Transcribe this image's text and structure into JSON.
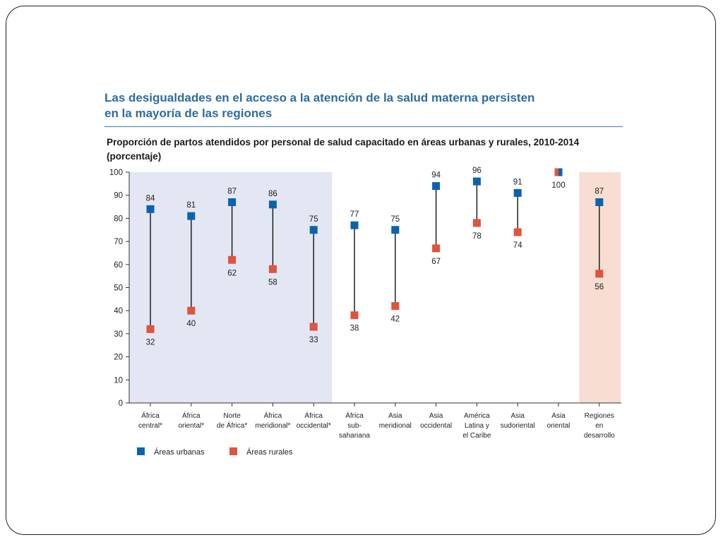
{
  "title": "Las desigualdades en el acceso a la atención de la salud materna persisten\nen la mayoría de las regiones",
  "subtitle": "Proporción de partos atendidos por personal de salud capacitado en áreas urbanas y rurales, 2010-2014\n(porcentaje)",
  "colors": {
    "urban": "#0b63ad",
    "rural": "#e0533c",
    "shade_left": "#e3e6f3",
    "shade_right": "#f7ddd2"
  },
  "chart_data": {
    "type": "scatter",
    "title": "Proporción de partos atendidos por personal de salud capacitado en áreas urbanas y rurales, 2010-2014 (porcentaje)",
    "ylim": [
      0,
      100
    ],
    "yticks": [
      0,
      10,
      20,
      30,
      40,
      50,
      60,
      70,
      80,
      90,
      100
    ],
    "grid": false,
    "legend_placement": "bottom-left",
    "categories": [
      [
        "África",
        "central*"
      ],
      [
        "África",
        "oriental*"
      ],
      [
        "Norte",
        "de África*"
      ],
      [
        "África",
        "meridional*"
      ],
      [
        "África",
        "occidental*"
      ],
      [
        "África",
        "sub-",
        "sahariana"
      ],
      [
        "Asia",
        "meridional"
      ],
      [
        "Asia",
        "occidental"
      ],
      [
        "América",
        "Latina y",
        "el Caribe"
      ],
      [
        "Asia",
        "sudoriental"
      ],
      [
        "Asia",
        "oriental"
      ],
      [
        "Regiones",
        "en",
        "desarrollo"
      ]
    ],
    "series": [
      {
        "name": "Áreas urbanas",
        "values": [
          84,
          81,
          87,
          86,
          75,
          77,
          75,
          94,
          96,
          91,
          100,
          87
        ]
      },
      {
        "name": "Áreas rurales",
        "values": [
          32,
          40,
          62,
          58,
          33,
          38,
          42,
          67,
          78,
          74,
          100,
          56
        ]
      }
    ],
    "labels": [
      {
        "urban": "84",
        "rural": "32"
      },
      {
        "urban": "81",
        "rural": "40"
      },
      {
        "urban": "87",
        "rural": "62"
      },
      {
        "urban": "86",
        "rural": "58"
      },
      {
        "urban": "75",
        "rural": "33"
      },
      {
        "urban": "77",
        "rural": "38"
      },
      {
        "urban": "75",
        "rural": "42"
      },
      {
        "urban": "94",
        "rural": "67"
      },
      {
        "urban": "96",
        "rural": "78"
      },
      {
        "urban": "91",
        "rural": "74"
      },
      {
        "combined": "100"
      },
      {
        "urban": "87",
        "rural": "56"
      }
    ],
    "shaded_groups": [
      {
        "from_index": 0,
        "to_index": 4,
        "color_key": "shade_left"
      },
      {
        "from_index": 11,
        "to_index": 11,
        "color_key": "shade_right"
      }
    ]
  }
}
